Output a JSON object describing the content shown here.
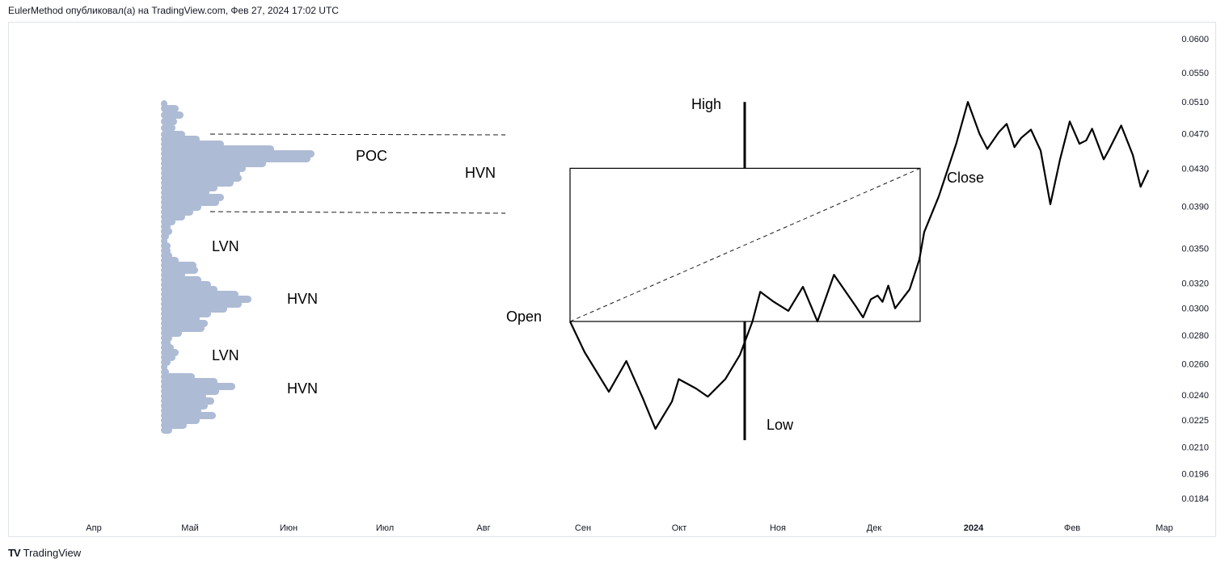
{
  "header": {
    "text": "EulerMethod опубликовал(а) на TradingView.com, Фев 27, 2024 17:02 UTC"
  },
  "footer": {
    "logo": "TV",
    "brand": "TradingView"
  },
  "colors": {
    "profile": "#aebbd4",
    "line": "#000000",
    "axis_text": "#131722",
    "frame": "#e0e3eb"
  },
  "chart_data": {
    "type": "line",
    "y_axis": {
      "scale": "log",
      "range": [
        0.0178,
        0.0625
      ],
      "ticks": [
        "0.0600",
        "0.0550",
        "0.0510",
        "0.0470",
        "0.0430",
        "0.0390",
        "0.0350",
        "0.0320",
        "0.0300",
        "0.0280",
        "0.0260",
        "0.0240",
        "0.0225",
        "0.0210",
        "0.0196",
        "0.0184"
      ]
    },
    "x_axis": {
      "ticks": [
        {
          "label": "Апр",
          "bold": false
        },
        {
          "label": "Май",
          "bold": false
        },
        {
          "label": "Июн",
          "bold": false
        },
        {
          "label": "Июл",
          "bold": false
        },
        {
          "label": "Авг",
          "bold": false
        },
        {
          "label": "Сен",
          "bold": false
        },
        {
          "label": "Окт",
          "bold": false
        },
        {
          "label": "Ноя",
          "bold": false
        },
        {
          "label": "Дек",
          "bold": false
        },
        {
          "label": "2024",
          "bold": true
        },
        {
          "label": "Фев",
          "bold": false
        },
        {
          "label": "Мар",
          "bold": false
        }
      ]
    },
    "series": [
      {
        "values": [
          [
            0.0,
            0.029
          ],
          [
            0.15,
            0.0268
          ],
          [
            0.4,
            0.0242
          ],
          [
            0.58,
            0.0262
          ],
          [
            0.75,
            0.0238
          ],
          [
            0.88,
            0.022
          ],
          [
            1.05,
            0.0236
          ],
          [
            1.12,
            0.025
          ],
          [
            1.3,
            0.0244
          ],
          [
            1.42,
            0.0239
          ],
          [
            1.6,
            0.025
          ],
          [
            1.75,
            0.0266
          ],
          [
            1.88,
            0.029
          ],
          [
            1.96,
            0.0313
          ],
          [
            2.1,
            0.0305
          ],
          [
            2.25,
            0.0298
          ],
          [
            2.4,
            0.0317
          ],
          [
            2.55,
            0.029
          ],
          [
            2.72,
            0.0327
          ],
          [
            2.85,
            0.0312
          ],
          [
            2.95,
            0.0301
          ],
          [
            3.02,
            0.0293
          ],
          [
            3.1,
            0.0307
          ],
          [
            3.17,
            0.031
          ],
          [
            3.22,
            0.0305
          ],
          [
            3.28,
            0.0318
          ],
          [
            3.35,
            0.03
          ],
          [
            3.5,
            0.0315
          ],
          [
            3.6,
            0.034
          ],
          [
            3.65,
            0.0365
          ],
          [
            3.8,
            0.04
          ],
          [
            3.98,
            0.0458
          ],
          [
            4.1,
            0.051
          ],
          [
            4.22,
            0.047
          ],
          [
            4.3,
            0.0452
          ],
          [
            4.42,
            0.0472
          ],
          [
            4.5,
            0.0482
          ],
          [
            4.58,
            0.0454
          ],
          [
            4.65,
            0.0465
          ],
          [
            4.75,
            0.0475
          ],
          [
            4.85,
            0.045
          ],
          [
            4.95,
            0.0392
          ],
          [
            5.05,
            0.044
          ],
          [
            5.15,
            0.0485
          ],
          [
            5.25,
            0.0458
          ],
          [
            5.32,
            0.0462
          ],
          [
            5.38,
            0.0476
          ],
          [
            5.5,
            0.044
          ],
          [
            5.55,
            0.045
          ],
          [
            5.68,
            0.048
          ],
          [
            5.8,
            0.0445
          ],
          [
            5.88,
            0.041
          ],
          [
            5.96,
            0.0428
          ]
        ]
      }
    ],
    "candle": {
      "open": 0.029,
      "high": 0.051,
      "low": 0.022,
      "close": 0.043
    },
    "annotations": [
      {
        "text": "POC"
      },
      {
        "text": "HVN"
      },
      {
        "text": "LVN"
      },
      {
        "text": "HVN"
      },
      {
        "text": "LVN"
      },
      {
        "text": "HVN"
      },
      {
        "text": "High"
      },
      {
        "text": "Low"
      },
      {
        "text": "Open"
      },
      {
        "text": "Close"
      }
    ]
  }
}
